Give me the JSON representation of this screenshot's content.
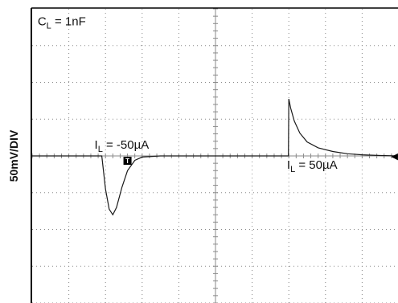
{
  "chart_data": {
    "type": "line",
    "title": "",
    "xlabel": "",
    "ylabel": "50mV/DIV",
    "x_divisions": 10,
    "y_divisions": 8,
    "grid": true,
    "grid_style": "dotted",
    "colors": {
      "trace": "#1a1a1a",
      "grid": "#8a8a8a",
      "frame": "#000000",
      "background": "#ffffff"
    },
    "baseline_div": 4,
    "trigger_marker_div": 2.6,
    "trigger_marker_label": "T",
    "ground_marker_label": "◀",
    "series": [
      {
        "x": [
          0.0,
          1.9,
          2.0,
          2.1,
          2.2,
          2.3,
          2.45,
          2.6,
          2.8,
          3.0,
          3.5,
          4.0,
          5.0,
          6.0,
          6.99,
          7.0,
          7.05,
          7.15,
          7.3,
          7.5,
          7.8,
          8.2,
          8.6,
          9.0,
          9.5,
          10.0
        ],
        "y": [
          0,
          0,
          -0.9,
          -1.45,
          -1.6,
          -1.4,
          -0.85,
          -0.4,
          -0.12,
          -0.03,
          0,
          0,
          0,
          0,
          0,
          1.55,
          1.3,
          0.95,
          0.62,
          0.38,
          0.22,
          0.12,
          0.06,
          0.03,
          0.01,
          0
        ]
      }
    ],
    "annotations": [
      {
        "id": "cap",
        "main": "C",
        "sub": "L",
        "rest": " = 1nF",
        "x": 0.15,
        "y": 3.55
      },
      {
        "id": "neg",
        "main": "I",
        "sub": "L",
        "rest": " = -50µA",
        "x": 1.7,
        "y": 0.2
      },
      {
        "id": "pos",
        "main": "I",
        "sub": "L",
        "rest": " = 50µA",
        "x": 6.95,
        "y": -0.35
      }
    ]
  }
}
